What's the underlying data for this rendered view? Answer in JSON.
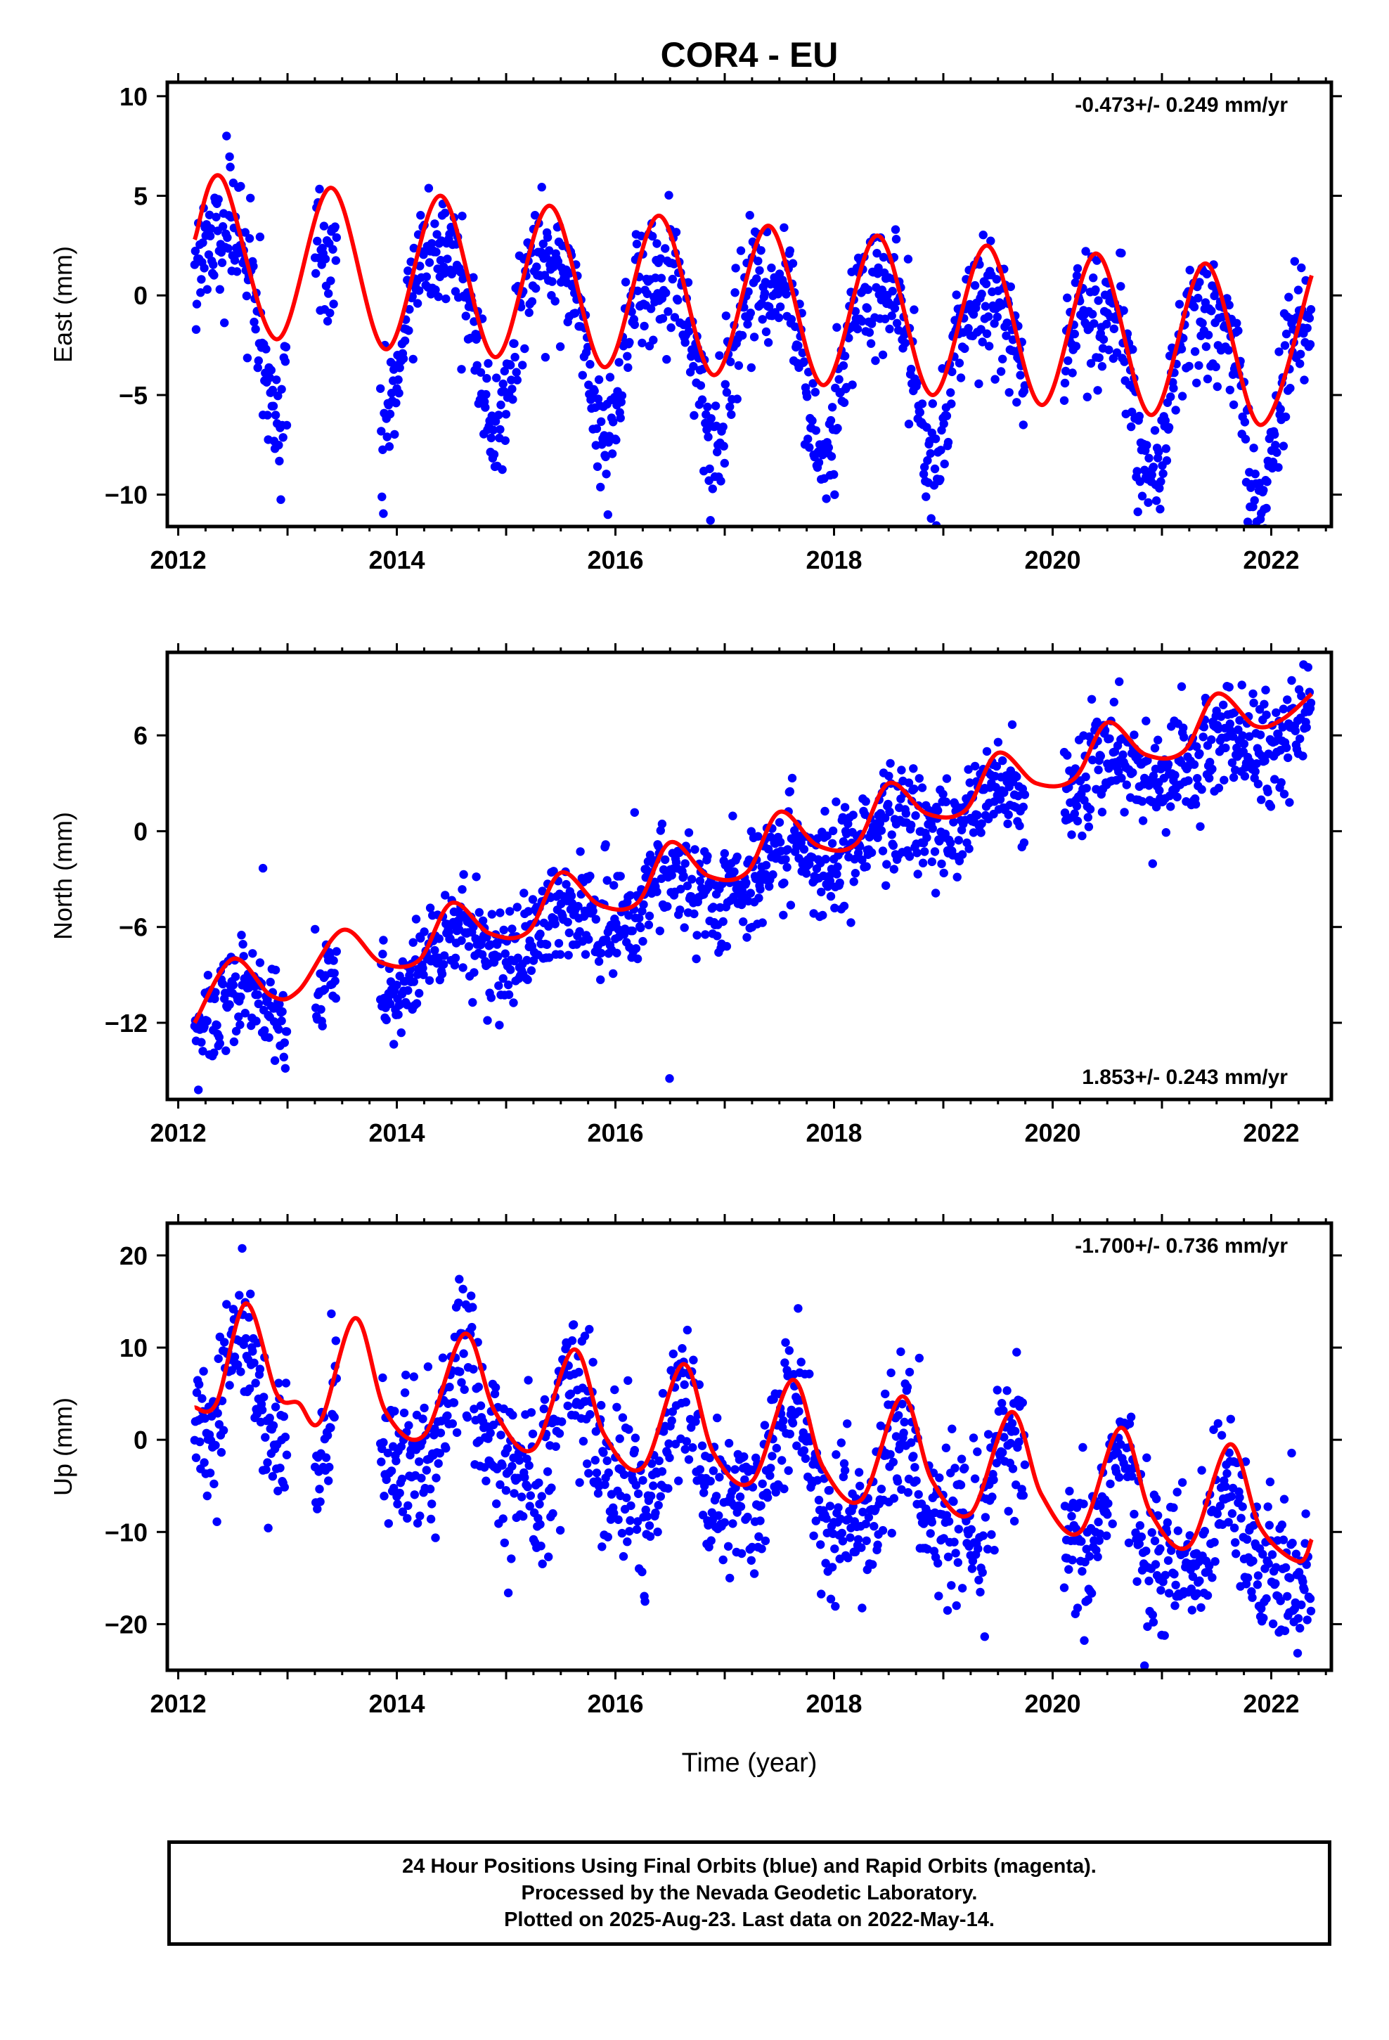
{
  "figure": {
    "title": "COR4 - EU",
    "x_label": "Time (year)",
    "caption": [
      "24 Hour Positions Using Final Orbits (blue) and Rapid Orbits (magenta).",
      "Processed by the Nevada Geodetic Laboratory.",
      "Plotted on 2025-Aug-23. Last data on 2022-May-14."
    ]
  },
  "colors": {
    "points": "#0000ff",
    "fit": "#ff0000",
    "frame": "#000000"
  },
  "chart_data": [
    {
      "type": "scatter",
      "ylabel": "East (mm)",
      "rate_label": "-0.473+/- 0.249 mm/yr",
      "rate_position": "top-right",
      "xlim": [
        2011.9,
        2022.55
      ],
      "ylim": [
        -11.6,
        10.7
      ],
      "x_ticks": [
        2012,
        2014,
        2016,
        2018,
        2020,
        2022
      ],
      "y_ticks": [
        -10,
        -5,
        0,
        5,
        10
      ],
      "y_tick_labels": [
        "−10",
        "−5",
        "0",
        "5",
        "10"
      ],
      "series": [
        {
          "name": "",
          "type": "scatter",
          "color": "#0000ff",
          "model": {
            "start": 2012.15,
            "end": 2022.37,
            "offset": 0.0,
            "rate": -0.47,
            "amplitude": 4.3,
            "phase_year": 2012.4,
            "amplitude2": 1.5,
            "phase2_year": 2012.15,
            "noise": 1.5
          },
          "gaps": [
            [
              2013.0,
              2013.25
            ],
            [
              2013.45,
              2013.85
            ],
            [
              2019.75,
              2020.1
            ]
          ]
        },
        {
          "name": "",
          "type": "line",
          "color": "#ff0000",
          "x": [
            2012.15,
            2012.4,
            2012.9,
            2013.4,
            2013.9,
            2014.4,
            2014.9,
            2015.4,
            2015.9,
            2016.4,
            2016.9,
            2017.4,
            2017.9,
            2018.4,
            2018.9,
            2019.4,
            2019.9,
            2020.4,
            2020.9,
            2021.4,
            2021.9,
            2022.37
          ],
          "y": [
            2.8,
            5.9,
            -2.2,
            5.4,
            -2.7,
            5.0,
            -3.1,
            4.5,
            -3.6,
            4.0,
            -4.0,
            3.5,
            -4.5,
            3.0,
            -5.0,
            2.5,
            -5.5,
            2.1,
            -6.0,
            1.6,
            -6.5,
            1.0
          ]
        }
      ]
    },
    {
      "type": "scatter",
      "ylabel": "North (mm)",
      "rate_label": "1.853+/- 0.243 mm/yr",
      "rate_position": "bottom-right",
      "xlim": [
        2011.9,
        2022.55
      ],
      "ylim": [
        -16.8,
        11.2
      ],
      "x_ticks": [
        2012,
        2014,
        2016,
        2018,
        2020,
        2022
      ],
      "y_ticks": [
        -12,
        -6,
        0,
        6
      ],
      "y_tick_labels": [
        "−12",
        "−6",
        "0",
        "6"
      ],
      "series": [
        {
          "name": "",
          "type": "scatter",
          "color": "#0000ff",
          "model": {
            "start": 2012.15,
            "end": 2022.37,
            "offset": -12.0,
            "rate": 1.853,
            "amplitude": 1.1,
            "phase_year": 2012.5,
            "amplitude2": 0.0,
            "phase2_year": 2012.0,
            "noise": 1.6
          },
          "gaps": [
            [
              2013.0,
              2013.25
            ],
            [
              2013.45,
              2013.85
            ],
            [
              2019.75,
              2020.1
            ]
          ]
        },
        {
          "name": "",
          "type": "line",
          "color": "#ff0000",
          "x": [
            2012.15,
            2012.5,
            2012.85,
            2013.1,
            2013.5,
            2013.85,
            2014.2,
            2014.5,
            2014.85,
            2015.2,
            2015.5,
            2015.85,
            2016.2,
            2016.5,
            2016.85,
            2017.2,
            2017.5,
            2017.85,
            2018.2,
            2018.5,
            2018.85,
            2019.2,
            2019.5,
            2019.85,
            2020.2,
            2020.5,
            2020.85,
            2021.2,
            2021.5,
            2021.85,
            2022.1,
            2022.37
          ],
          "y": [
            -12.0,
            -8.0,
            -10.3,
            -10.0,
            -6.2,
            -8.2,
            -8.1,
            -4.5,
            -6.4,
            -6.3,
            -2.6,
            -4.6,
            -4.5,
            -0.7,
            -2.8,
            -2.6,
            1.2,
            -0.9,
            -0.8,
            3.0,
            1.1,
            1.3,
            4.9,
            3.0,
            3.3,
            6.8,
            4.8,
            5.0,
            8.6,
            6.6,
            7.0,
            8.6
          ]
        }
      ]
    },
    {
      "type": "scatter",
      "ylabel": "Up (mm)",
      "rate_label": "-1.700+/- 0.736 mm/yr",
      "rate_position": "top-right",
      "xlim": [
        2011.9,
        2022.55
      ],
      "ylim": [
        -25.0,
        23.5
      ],
      "x_ticks": [
        2012,
        2014,
        2016,
        2018,
        2020,
        2022
      ],
      "y_ticks": [
        -20,
        -10,
        0,
        10,
        20
      ],
      "y_tick_labels": [
        "−20",
        "−10",
        "0",
        "10",
        "20"
      ],
      "series": [
        {
          "name": "",
          "type": "scatter",
          "color": "#0000ff",
          "model": {
            "start": 2012.15,
            "end": 2022.37,
            "offset": 5.0,
            "rate": -1.7,
            "amplitude": 5.5,
            "phase_year": 2012.62,
            "amplitude2": 2.5,
            "phase2_year": 2012.6,
            "noise": 4.0
          },
          "gaps": [
            [
              2013.0,
              2013.25
            ],
            [
              2013.45,
              2013.85
            ],
            [
              2019.75,
              2020.1
            ]
          ]
        },
        {
          "name": "",
          "type": "line",
          "color": "#ff0000",
          "x": [
            2012.15,
            2012.35,
            2012.62,
            2012.9,
            2013.1,
            2013.3,
            2013.62,
            2013.9,
            2014.25,
            2014.62,
            2014.9,
            2015.25,
            2015.62,
            2015.9,
            2016.25,
            2016.62,
            2016.9,
            2017.25,
            2017.62,
            2017.9,
            2018.25,
            2018.62,
            2018.9,
            2019.25,
            2019.62,
            2019.9,
            2020.25,
            2020.62,
            2020.9,
            2021.25,
            2021.62,
            2021.9,
            2022.25,
            2022.37
          ],
          "y": [
            3.5,
            4.0,
            14.8,
            5.0,
            4.0,
            2.0,
            13.2,
            3.0,
            0.5,
            11.5,
            3.0,
            -1.0,
            9.8,
            0.5,
            -3.0,
            8.2,
            -1.5,
            -4.5,
            6.5,
            -3.0,
            -6.5,
            4.7,
            -4.5,
            -8.0,
            3.0,
            -6.0,
            -10.0,
            1.3,
            -8.0,
            -11.5,
            -0.5,
            -9.5,
            -13.2,
            -10.8
          ]
        }
      ]
    }
  ]
}
